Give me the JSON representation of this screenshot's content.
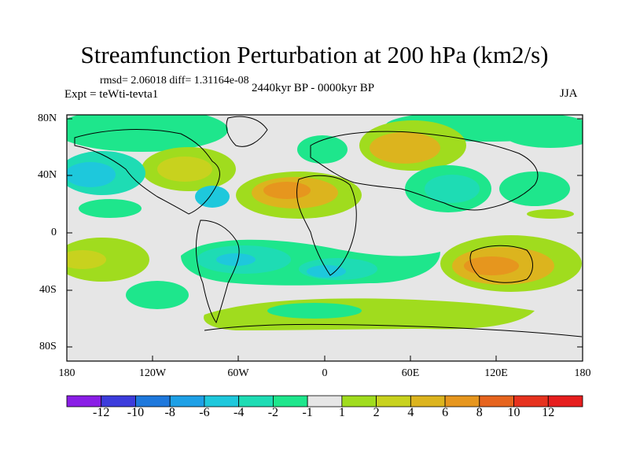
{
  "title": "Streamfunction Perturbation at 200 hPa (km2/s)",
  "stats": "rmsd= 2.06018 diff= 1.31164e-08",
  "expt": "Expt = teWti-tevta1",
  "period": "2440kyr BP - 0000kyr BP",
  "season": "JJA",
  "lat_labels": [
    "80N",
    "40N",
    "0",
    "40S",
    "80S"
  ],
  "lon_labels": [
    "180",
    "120W",
    "60W",
    "0",
    "60E",
    "120E",
    "180"
  ],
  "colorbar": {
    "labels": [
      "-12",
      "-10",
      "-8",
      "-6",
      "-4",
      "-2",
      "-1",
      "1",
      "2",
      "4",
      "6",
      "8",
      "10",
      "12"
    ],
    "colors": [
      "#8a1ee6",
      "#3c3cdc",
      "#1e78dc",
      "#1ea0e6",
      "#1ec8dc",
      "#1edcb4",
      "#1ee68c",
      "#e6e6e6",
      "#a0dc1e",
      "#c8d21e",
      "#dcb41e",
      "#e6961e",
      "#e6641e",
      "#e6321e",
      "#e61e1e"
    ]
  },
  "colors": {
    "background_field": "#e6e6e6",
    "frame": "#000000"
  }
}
